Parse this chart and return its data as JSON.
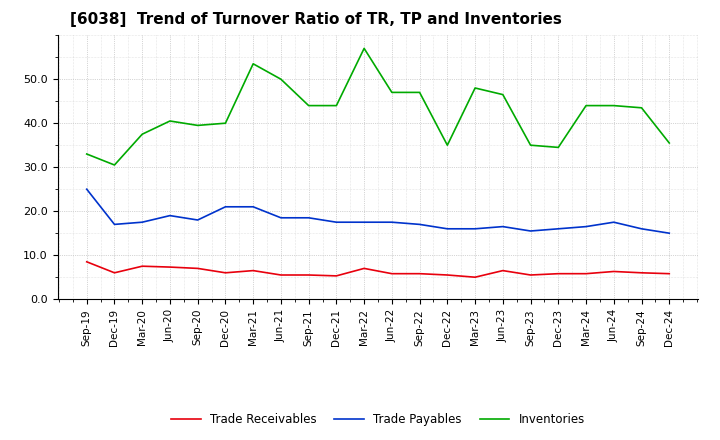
{
  "title": "[6038]  Trend of Turnover Ratio of TR, TP and Inventories",
  "x_labels": [
    "Sep-19",
    "Dec-19",
    "Mar-20",
    "Jun-20",
    "Sep-20",
    "Dec-20",
    "Mar-21",
    "Jun-21",
    "Sep-21",
    "Dec-21",
    "Mar-22",
    "Jun-22",
    "Sep-22",
    "Dec-22",
    "Mar-23",
    "Jun-23",
    "Sep-23",
    "Dec-23",
    "Mar-24",
    "Jun-24",
    "Sep-24",
    "Dec-24"
  ],
  "trade_receivables": [
    8.5,
    6.0,
    7.5,
    7.3,
    7.0,
    6.0,
    6.5,
    5.5,
    5.5,
    5.3,
    7.0,
    5.8,
    5.8,
    5.5,
    5.0,
    6.5,
    5.5,
    5.8,
    5.8,
    6.3,
    6.0,
    5.8
  ],
  "trade_payables": [
    25.0,
    17.0,
    17.5,
    19.0,
    18.0,
    21.0,
    21.0,
    18.5,
    18.5,
    17.5,
    17.5,
    17.5,
    17.0,
    16.0,
    16.0,
    16.5,
    15.5,
    16.0,
    16.5,
    17.5,
    16.0,
    15.0
  ],
  "inventories": [
    33.0,
    30.5,
    37.5,
    40.5,
    39.5,
    40.0,
    53.5,
    50.0,
    44.0,
    44.0,
    57.0,
    47.0,
    47.0,
    35.0,
    48.0,
    46.5,
    35.0,
    34.5,
    44.0,
    44.0,
    43.5,
    35.5
  ],
  "tr_color": "#e8000d",
  "tp_color": "#0033cc",
  "inv_color": "#00aa00",
  "ylim": [
    0,
    60
  ],
  "yticks": [
    0.0,
    10.0,
    20.0,
    30.0,
    40.0,
    50.0
  ],
  "background_color": "#ffffff",
  "plot_bg_color": "#ffffff",
  "grid_color": "#999999",
  "title_fontsize": 11,
  "legend_labels": [
    "Trade Receivables",
    "Trade Payables",
    "Inventories"
  ]
}
